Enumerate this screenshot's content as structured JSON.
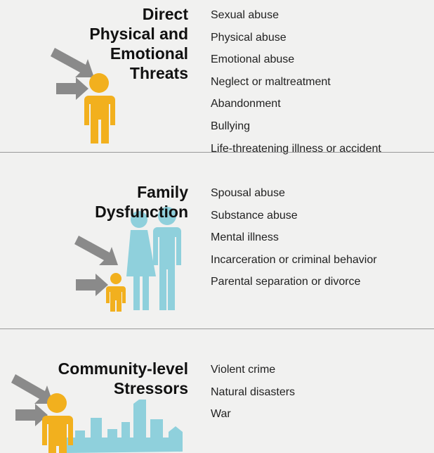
{
  "sections": [
    {
      "title": [
        "Direct",
        "Physical and",
        "Emotional",
        "Threats"
      ],
      "items": [
        "Sexual abuse",
        "Physical abuse",
        "Emotional abuse",
        "Neglect or maltreatment",
        "Abandonment",
        "Bullying",
        "Life-threatening illness or accident"
      ]
    },
    {
      "title": [
        "Family",
        "Dysfunction"
      ],
      "items": [
        "Spousal abuse",
        "Substance abuse",
        "Mental illness",
        "Incarceration or criminal behavior",
        "Parental separation or divorce"
      ]
    },
    {
      "title": [
        "Community-level",
        "Stressors"
      ],
      "items": [
        "Violent crime",
        "Natural disasters",
        "War"
      ]
    }
  ]
}
